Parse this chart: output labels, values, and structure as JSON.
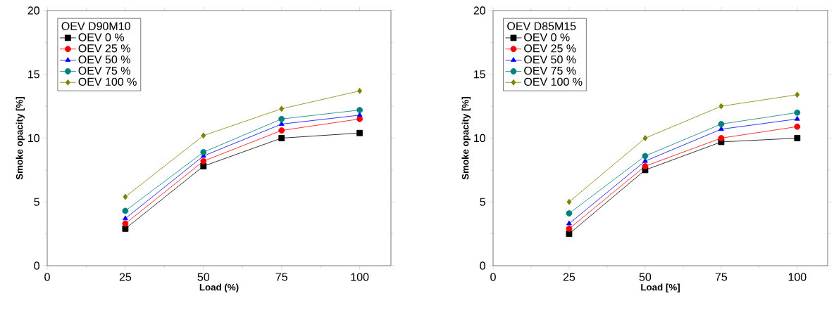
{
  "chart_data": [
    {
      "type": "line",
      "legend_title": "OEV D90M10",
      "xlabel": "Load (%)",
      "ylabel": "Smoke opacity [%]",
      "x": [
        25,
        50,
        75,
        100
      ],
      "xlim": [
        0,
        110
      ],
      "xticks": [
        0,
        25,
        50,
        75,
        100
      ],
      "ylim": [
        0,
        20
      ],
      "yticks": [
        0,
        5,
        10,
        15,
        20
      ],
      "legend": "top left",
      "series": [
        {
          "name": "OEV 0 %",
          "color": "#000000",
          "marker": "square",
          "values": [
            2.9,
            7.8,
            10.0,
            10.4
          ]
        },
        {
          "name": "OEV 25 %",
          "color": "#ff0000",
          "marker": "circle",
          "values": [
            3.3,
            8.2,
            10.6,
            11.5
          ]
        },
        {
          "name": "OEV 50 %",
          "color": "#0000ff",
          "marker": "triangle",
          "values": [
            3.7,
            8.6,
            11.1,
            11.8
          ]
        },
        {
          "name": "OEV 75 %",
          "color": "#008080",
          "marker": "circle",
          "values": [
            4.3,
            8.9,
            11.5,
            12.2
          ]
        },
        {
          "name": "OEV 100 %",
          "color": "#808000",
          "marker": "diamond",
          "values": [
            5.4,
            10.2,
            12.3,
            13.7
          ]
        }
      ]
    },
    {
      "type": "line",
      "legend_title": "OEV D85M15",
      "xlabel": "Load [%]",
      "ylabel": "Smoke opacity [%]",
      "x": [
        25,
        50,
        75,
        100
      ],
      "xlim": [
        0,
        110
      ],
      "xticks": [
        0,
        25,
        50,
        75,
        100
      ],
      "ylim": [
        0,
        20
      ],
      "yticks": [
        0,
        5,
        10,
        15,
        20
      ],
      "legend": "top left",
      "series": [
        {
          "name": "OEV 0 %",
          "color": "#000000",
          "marker": "square",
          "values": [
            2.5,
            7.5,
            9.7,
            10.0
          ]
        },
        {
          "name": "OEV 25 %",
          "color": "#ff0000",
          "marker": "circle",
          "values": [
            2.9,
            7.8,
            10.0,
            10.9
          ]
        },
        {
          "name": "OEV 50 %",
          "color": "#0000ff",
          "marker": "triangle",
          "values": [
            3.3,
            8.2,
            10.7,
            11.5
          ]
        },
        {
          "name": "OEV 75 %",
          "color": "#008080",
          "marker": "circle",
          "values": [
            4.1,
            8.6,
            11.1,
            12.0
          ]
        },
        {
          "name": "OEV 100 %",
          "color": "#808000",
          "marker": "diamond",
          "values": [
            5.0,
            10.0,
            12.5,
            13.4
          ]
        }
      ]
    }
  ]
}
